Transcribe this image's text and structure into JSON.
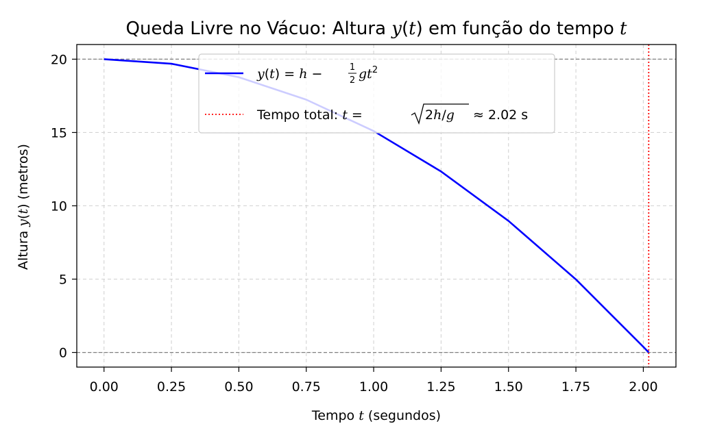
{
  "chart_data": {
    "type": "line",
    "title": "Queda Livre no Vácuo: Altura y(t) em função do tempo t",
    "xlabel": "Tempo t (segundos)",
    "ylabel": "Altura y(t) (metros)",
    "xlim": [
      -0.101,
      2.121
    ],
    "ylim": [
      -1.0,
      21.0
    ],
    "x_ticks": [
      0.0,
      0.25,
      0.5,
      0.75,
      1.0,
      1.25,
      1.5,
      1.75,
      2.0
    ],
    "x_tick_labels": [
      "0.00",
      "0.25",
      "0.50",
      "0.75",
      "1.00",
      "1.25",
      "1.50",
      "1.75",
      "2.00"
    ],
    "y_ticks": [
      0,
      5,
      10,
      15,
      20
    ],
    "y_tick_labels": [
      "0",
      "5",
      "10",
      "15",
      "20"
    ],
    "grid": true,
    "legend_position": "top-center",
    "series": [
      {
        "name": "y(t) = h − ½gt²",
        "color": "#0000ff",
        "style": "solid",
        "x": [
          0.0,
          0.25,
          0.5,
          0.75,
          1.0,
          1.25,
          1.5,
          1.75,
          2.0,
          2.02
        ],
        "y": [
          20.0,
          19.69,
          18.77,
          17.24,
          15.1,
          12.34,
          8.97,
          4.98,
          0.38,
          0.0
        ]
      }
    ],
    "reference_lines": [
      {
        "orientation": "vertical",
        "value": 2.02,
        "color": "#ff0000",
        "style": "dotted",
        "name": "Tempo total: t = √(2h/g) ≈ 2.02 s"
      },
      {
        "orientation": "horizontal",
        "value": 20,
        "color": "#808080",
        "style": "dashed"
      },
      {
        "orientation": "horizontal",
        "value": 0,
        "color": "#808080",
        "style": "dashed"
      }
    ],
    "legend": {
      "curve": {
        "color": "#0000ff",
        "style": "solid"
      },
      "total_time": {
        "color": "#ff0000",
        "style": "dotted",
        "prefix": "Tempo total: ",
        "eq": "t =",
        "sqrt_arg": "2h/g",
        "approx": "≈ 2.02 s"
      }
    }
  }
}
